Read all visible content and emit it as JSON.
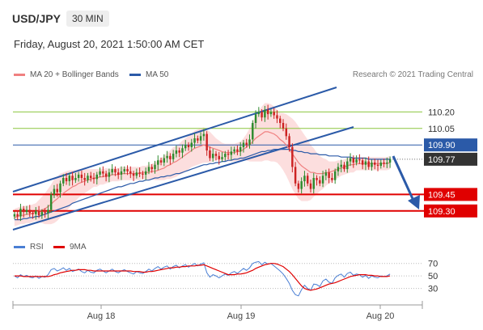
{
  "header": {
    "symbol": "USD/JPY",
    "timeframe": "30 MIN",
    "datetime": "Friday, August 20, 2021 1:50:00 AM CET"
  },
  "legend": {
    "ma20": "MA 20 + Bollinger Bands",
    "ma50": "MA 50",
    "credit": "Research © 2021 Trading Central",
    "rsi": "RSI",
    "ma9": "9MA"
  },
  "colors": {
    "ma20": "#f08080",
    "bands": "#fcd8d8",
    "ma50": "#2b5aa8",
    "resistance": "#8cc63f",
    "support": "#e00000",
    "pivot": "#2b5aa8",
    "current": "#333333",
    "up_candle": "#2e8b2e",
    "down_candle": "#cc2222",
    "rsi": "#4a7fd4",
    "rsi_ma": "#e00000"
  },
  "chart_data": [
    {
      "type": "candlestick",
      "title": "USD/JPY 30 MIN",
      "x_ticks": [
        "Aug 18",
        "Aug 19",
        "Aug 20"
      ],
      "ylim": [
        109.1,
        110.35
      ],
      "levels": [
        {
          "label": "110.20",
          "value": 110.2,
          "kind": "resistance"
        },
        {
          "label": "110.05",
          "value": 110.05,
          "kind": "resistance"
        },
        {
          "label": "109.90",
          "value": 109.9,
          "kind": "pivot"
        },
        {
          "label": "109.77",
          "value": 109.77,
          "kind": "current"
        },
        {
          "label": "109.45",
          "value": 109.45,
          "kind": "support"
        },
        {
          "label": "109.30",
          "value": 109.3,
          "kind": "support"
        }
      ],
      "closes": [
        109.27,
        109.25,
        109.32,
        109.29,
        109.31,
        109.28,
        109.27,
        109.3,
        109.26,
        109.29,
        109.28,
        109.31,
        109.45,
        109.5,
        109.47,
        109.55,
        109.6,
        109.57,
        109.62,
        109.58,
        109.6,
        109.63,
        109.6,
        109.58,
        109.62,
        109.6,
        109.59,
        109.63,
        109.66,
        109.64,
        109.61,
        109.65,
        109.68,
        109.65,
        109.63,
        109.66,
        109.68,
        109.66,
        109.64,
        109.62,
        109.65,
        109.64,
        109.63,
        109.66,
        109.7,
        109.68,
        109.72,
        109.76,
        109.74,
        109.78,
        109.8,
        109.77,
        109.82,
        109.85,
        109.83,
        109.87,
        109.9,
        109.88,
        109.92,
        109.96,
        109.94,
        109.98,
        110.0,
        109.85,
        109.78,
        109.82,
        109.8,
        109.77,
        109.79,
        109.82,
        109.81,
        109.84,
        109.86,
        109.84,
        109.88,
        109.92,
        109.9,
        109.95,
        110.1,
        110.18,
        110.2,
        110.15,
        110.22,
        110.18,
        110.2,
        110.17,
        110.14,
        110.1,
        110.05,
        109.98,
        109.88,
        109.7,
        109.55,
        109.5,
        109.57,
        109.62,
        109.55,
        109.5,
        109.6,
        109.58,
        109.55,
        109.62,
        109.65,
        109.6,
        109.58,
        109.66,
        109.7,
        109.72,
        109.68,
        109.75,
        109.78,
        109.74,
        109.77,
        109.76,
        109.72,
        109.75,
        109.7,
        109.74,
        109.72,
        109.71,
        109.74,
        109.73,
        109.74,
        109.77
      ],
      "ma20": [
        109.24,
        109.25,
        109.26,
        109.26,
        109.27,
        109.27,
        109.28,
        109.29,
        109.3,
        109.31,
        109.32,
        109.34,
        109.36,
        109.39,
        109.41,
        109.44,
        109.46,
        109.48,
        109.5,
        109.52,
        109.53,
        109.55,
        109.56,
        109.57,
        109.58,
        109.59,
        109.6,
        109.6,
        109.61,
        109.61,
        109.62,
        109.62,
        109.63,
        109.63,
        109.63,
        109.64,
        109.64,
        109.64,
        109.64,
        109.64,
        109.64,
        109.64,
        109.65,
        109.65,
        109.65,
        109.66,
        109.66,
        109.67,
        109.68,
        109.69,
        109.71,
        109.72,
        109.74,
        109.75,
        109.77,
        109.79,
        109.81,
        109.83,
        109.85,
        109.87,
        109.88,
        109.89,
        109.9,
        109.89,
        109.88,
        109.87,
        109.86,
        109.85,
        109.84,
        109.83,
        109.83,
        109.83,
        109.83,
        109.84,
        109.84,
        109.86,
        109.88,
        109.9,
        109.93,
        109.96,
        109.98,
        110.0,
        110.02,
        110.02,
        110.01,
        110.0,
        109.98,
        109.95,
        109.93,
        109.9,
        109.86,
        109.82,
        109.78,
        109.74,
        109.71,
        109.69,
        109.67,
        109.65,
        109.65,
        109.64,
        109.64,
        109.64,
        109.65,
        109.65,
        109.66,
        109.67,
        109.68,
        109.69,
        109.7,
        109.71,
        109.72,
        109.72,
        109.73,
        109.73,
        109.73,
        109.73,
        109.73,
        109.73,
        109.73,
        109.73,
        109.73,
        109.73,
        109.73,
        109.74
      ],
      "band_width": [
        0.08,
        0.08,
        0.08,
        0.08,
        0.08,
        0.08,
        0.08,
        0.08,
        0.1,
        0.12,
        0.14,
        0.16,
        0.18,
        0.2,
        0.2,
        0.2,
        0.19,
        0.18,
        0.17,
        0.15,
        0.14,
        0.13,
        0.12,
        0.11,
        0.1,
        0.09,
        0.08,
        0.08,
        0.07,
        0.07,
        0.07,
        0.06,
        0.06,
        0.06,
        0.06,
        0.06,
        0.06,
        0.06,
        0.06,
        0.06,
        0.06,
        0.06,
        0.06,
        0.06,
        0.07,
        0.07,
        0.08,
        0.09,
        0.1,
        0.11,
        0.12,
        0.13,
        0.14,
        0.14,
        0.14,
        0.15,
        0.15,
        0.15,
        0.15,
        0.16,
        0.16,
        0.16,
        0.16,
        0.15,
        0.14,
        0.12,
        0.1,
        0.09,
        0.08,
        0.08,
        0.08,
        0.08,
        0.08,
        0.08,
        0.09,
        0.1,
        0.12,
        0.15,
        0.18,
        0.21,
        0.23,
        0.25,
        0.26,
        0.26,
        0.26,
        0.25,
        0.24,
        0.24,
        0.26,
        0.28,
        0.3,
        0.32,
        0.33,
        0.33,
        0.32,
        0.3,
        0.28,
        0.25,
        0.22,
        0.19,
        0.16,
        0.14,
        0.12,
        0.1,
        0.09,
        0.08,
        0.08,
        0.07,
        0.07,
        0.07,
        0.07,
        0.07,
        0.06,
        0.06,
        0.06,
        0.06,
        0.06,
        0.06,
        0.06,
        0.06,
        0.06,
        0.06,
        0.06,
        0.06
      ],
      "ma50": [
        109.22,
        109.22,
        109.22,
        109.23,
        109.23,
        109.24,
        109.24,
        109.25,
        109.25,
        109.26,
        109.27,
        109.28,
        109.29,
        109.3,
        109.31,
        109.32,
        109.33,
        109.34,
        109.35,
        109.37,
        109.38,
        109.39,
        109.4,
        109.41,
        109.42,
        109.43,
        109.44,
        109.45,
        109.46,
        109.47,
        109.48,
        109.49,
        109.5,
        109.51,
        109.52,
        109.52,
        109.53,
        109.54,
        109.55,
        109.55,
        109.56,
        109.57,
        109.57,
        109.58,
        109.58,
        109.59,
        109.6,
        109.6,
        109.61,
        109.61,
        109.62,
        109.62,
        109.63,
        109.64,
        109.64,
        109.65,
        109.66,
        109.67,
        109.68,
        109.69,
        109.7,
        109.71,
        109.72,
        109.72,
        109.73,
        109.73,
        109.74,
        109.74,
        109.75,
        109.75,
        109.76,
        109.76,
        109.77,
        109.77,
        109.78,
        109.78,
        109.79,
        109.8,
        109.81,
        109.82,
        109.83,
        109.84,
        109.84,
        109.85,
        109.85,
        109.86,
        109.86,
        109.86,
        109.86,
        109.86,
        109.86,
        109.85,
        109.85,
        109.84,
        109.84,
        109.83,
        109.83,
        109.82,
        109.82,
        109.82,
        109.81,
        109.81,
        109.81,
        109.8,
        109.8,
        109.8,
        109.8,
        109.79,
        109.79,
        109.79,
        109.79,
        109.78,
        109.78,
        109.78,
        109.78,
        109.78,
        109.77,
        109.77,
        109.77,
        109.77,
        109.77,
        109.77,
        109.77,
        109.77
      ]
    },
    {
      "type": "line",
      "title": "RSI",
      "y_ticks": [
        70,
        50,
        30
      ],
      "ylim": [
        10,
        80
      ],
      "series": [
        {
          "name": "RSI",
          "values": [
            50,
            47,
            52,
            49,
            51,
            48,
            47,
            50,
            46,
            49,
            48,
            52,
            60,
            62,
            58,
            60,
            63,
            59,
            62,
            57,
            59,
            61,
            57,
            55,
            59,
            56,
            55,
            59,
            61,
            58,
            55,
            58,
            61,
            57,
            55,
            58,
            60,
            57,
            55,
            53,
            57,
            55,
            54,
            57,
            61,
            58,
            62,
            65,
            61,
            64,
            66,
            61,
            65,
            67,
            63,
            66,
            68,
            64,
            67,
            70,
            66,
            69,
            71,
            55,
            48,
            52,
            50,
            47,
            50,
            53,
            51,
            55,
            57,
            54,
            58,
            62,
            59,
            63,
            70,
            72,
            73,
            68,
            72,
            69,
            70,
            66,
            62,
            58,
            53,
            46,
            38,
            27,
            20,
            18,
            28,
            35,
            30,
            27,
            37,
            36,
            33,
            42,
            45,
            40,
            38,
            47,
            51,
            53,
            48,
            54,
            56,
            51,
            53,
            52,
            48,
            51,
            46,
            50,
            48,
            47,
            50,
            49,
            50,
            53
          ]
        },
        {
          "name": "9MA",
          "values": [
            50,
            50,
            50,
            49,
            49,
            49,
            49,
            49,
            49,
            49,
            49,
            49,
            50,
            52,
            53,
            55,
            56,
            57,
            58,
            59,
            59,
            60,
            60,
            60,
            59,
            59,
            58,
            58,
            58,
            58,
            58,
            58,
            58,
            58,
            58,
            58,
            58,
            58,
            58,
            57,
            57,
            57,
            56,
            56,
            57,
            57,
            58,
            59,
            60,
            61,
            62,
            63,
            63,
            64,
            64,
            65,
            65,
            66,
            66,
            66,
            67,
            67,
            68,
            66,
            64,
            62,
            60,
            58,
            56,
            54,
            52,
            52,
            52,
            53,
            53,
            54,
            55,
            57,
            59,
            62,
            64,
            66,
            68,
            69,
            70,
            70,
            69,
            67,
            65,
            61,
            57,
            52,
            46,
            40,
            34,
            30,
            28,
            27,
            28,
            29,
            31,
            33,
            35,
            37,
            38,
            39,
            41,
            43,
            45,
            47,
            49,
            50,
            51,
            52,
            52,
            52,
            51,
            51,
            50,
            50,
            49,
            49,
            49,
            50
          ]
        }
      ]
    }
  ]
}
